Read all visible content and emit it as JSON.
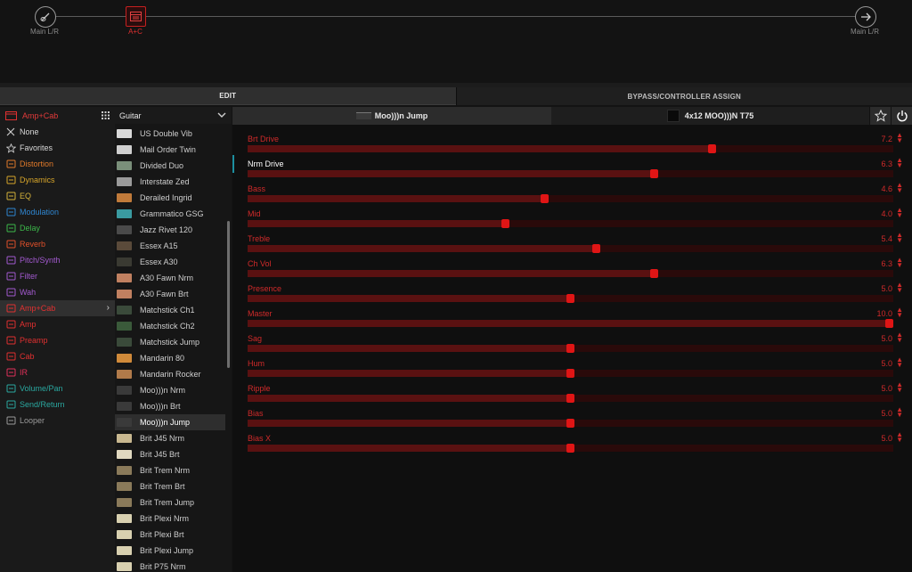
{
  "chain": {
    "input_label": "Main L/R",
    "block_label": "A+C",
    "output_label": "Main L/R"
  },
  "tabs": {
    "edit": "EDIT",
    "bypass": "BYPASS/CONTROLLER ASSIGN"
  },
  "categories": {
    "header": "Amp+Cab",
    "items": [
      {
        "label": "None",
        "color": "#d8d8d8",
        "icon": "x-icon"
      },
      {
        "label": "Favorites",
        "color": "#d8d8d8",
        "icon": "star-icon"
      },
      {
        "label": "Distortion",
        "color": "#e07a2a",
        "icon": "distortion-icon"
      },
      {
        "label": "Dynamics",
        "color": "#d7a52a",
        "icon": "dynamics-icon"
      },
      {
        "label": "EQ",
        "color": "#d4b23a",
        "icon": "eq-icon"
      },
      {
        "label": "Modulation",
        "color": "#2f86d0",
        "icon": "modulation-icon"
      },
      {
        "label": "Delay",
        "color": "#3cb84a",
        "icon": "delay-icon"
      },
      {
        "label": "Reverb",
        "color": "#e0502a",
        "icon": "reverb-icon"
      },
      {
        "label": "Pitch/Synth",
        "color": "#a35ad0",
        "icon": "pitch-icon"
      },
      {
        "label": "Filter",
        "color": "#a35ad0",
        "icon": "filter-icon"
      },
      {
        "label": "Wah",
        "color": "#a35ad0",
        "icon": "wah-icon"
      },
      {
        "label": "Amp+Cab",
        "color": "#e03030",
        "icon": "amp-cab-icon",
        "selected": true
      },
      {
        "label": "Amp",
        "color": "#e03030",
        "icon": "amp-icon"
      },
      {
        "label": "Preamp",
        "color": "#e03030",
        "icon": "preamp-icon"
      },
      {
        "label": "Cab",
        "color": "#e03030",
        "icon": "cab-icon"
      },
      {
        "label": "IR",
        "color": "#e0305a",
        "icon": "ir-icon"
      },
      {
        "label": "Volume/Pan",
        "color": "#2aa8a0",
        "icon": "volume-icon"
      },
      {
        "label": "Send/Return",
        "color": "#2aa8a0",
        "icon": "send-return-icon"
      },
      {
        "label": "Looper",
        "color": "#9a9a9a",
        "icon": "looper-icon"
      }
    ]
  },
  "models": {
    "header": "Guitar",
    "items": [
      {
        "label": "US Double Vib",
        "thumb": "#d8d8d8"
      },
      {
        "label": "Mail Order Twin",
        "thumb": "#cfcfcf"
      },
      {
        "label": "Divided Duo",
        "thumb": "#7a8f7a"
      },
      {
        "label": "Interstate Zed",
        "thumb": "#9a9a9a"
      },
      {
        "label": "Derailed Ingrid",
        "thumb": "#c07a3a"
      },
      {
        "label": "Grammatico GSG",
        "thumb": "#3a9aa0"
      },
      {
        "label": "Jazz Rivet 120",
        "thumb": "#4a4a4a"
      },
      {
        "label": "Essex A15",
        "thumb": "#5a4a3a"
      },
      {
        "label": "Essex A30",
        "thumb": "#3a3a32"
      },
      {
        "label": "A30 Fawn Nrm",
        "thumb": "#c08060"
      },
      {
        "label": "A30 Fawn Brt",
        "thumb": "#c08060"
      },
      {
        "label": "Matchstick Ch1",
        "thumb": "#3a4a3a"
      },
      {
        "label": "Matchstick Ch2",
        "thumb": "#3a5a3a"
      },
      {
        "label": "Matchstick Jump",
        "thumb": "#3a4a3a"
      },
      {
        "label": "Mandarin 80",
        "thumb": "#d08a3a"
      },
      {
        "label": "Mandarin Rocker",
        "thumb": "#b07a4a"
      },
      {
        "label": "Moo)))n Nrm",
        "thumb": "#3a3a3a"
      },
      {
        "label": "Moo)))n Brt",
        "thumb": "#3a3a3a"
      },
      {
        "label": "Moo)))n Jump",
        "thumb": "#3a3a3a",
        "selected": true
      },
      {
        "label": "Brit J45 Nrm",
        "thumb": "#c8b890"
      },
      {
        "label": "Brit J45 Brt",
        "thumb": "#e0d8c0"
      },
      {
        "label": "Brit Trem Nrm",
        "thumb": "#8a7a5a"
      },
      {
        "label": "Brit Trem Brt",
        "thumb": "#8a7a5a"
      },
      {
        "label": "Brit Trem Jump",
        "thumb": "#8a7a5a"
      },
      {
        "label": "Brit Plexi Nrm",
        "thumb": "#d8d0b0"
      },
      {
        "label": "Brit Plexi Brt",
        "thumb": "#d8d0b0"
      },
      {
        "label": "Brit Plexi Jump",
        "thumb": "#d8d0b0"
      },
      {
        "label": "Brit P75 Nrm",
        "thumb": "#d8d0b0"
      }
    ]
  },
  "amp_tab": "Moo)))n Jump",
  "cab_tab": "4x12 MOO)))N T75",
  "accent_color": "#e01515",
  "params": [
    {
      "label": "Brt Drive",
      "value": "7.2",
      "fraction": 0.72
    },
    {
      "label": "Nrm Drive",
      "value": "6.3",
      "fraction": 0.63,
      "selected": true
    },
    {
      "label": "Bass",
      "value": "4.6",
      "fraction": 0.46
    },
    {
      "label": "Mid",
      "value": "4.0",
      "fraction": 0.4
    },
    {
      "label": "Treble",
      "value": "5.4",
      "fraction": 0.54
    },
    {
      "label": "Ch Vol",
      "value": "6.3",
      "fraction": 0.63
    },
    {
      "label": "Presence",
      "value": "5.0",
      "fraction": 0.5
    },
    {
      "label": "Master",
      "value": "10.0",
      "fraction": 1.0
    },
    {
      "label": "Sag",
      "value": "5.0",
      "fraction": 0.5
    },
    {
      "label": "Hum",
      "value": "5.0",
      "fraction": 0.5
    },
    {
      "label": "Ripple",
      "value": "5.0",
      "fraction": 0.5
    },
    {
      "label": "Bias",
      "value": "5.0",
      "fraction": 0.5
    },
    {
      "label": "Bias X",
      "value": "5.0",
      "fraction": 0.5
    }
  ]
}
